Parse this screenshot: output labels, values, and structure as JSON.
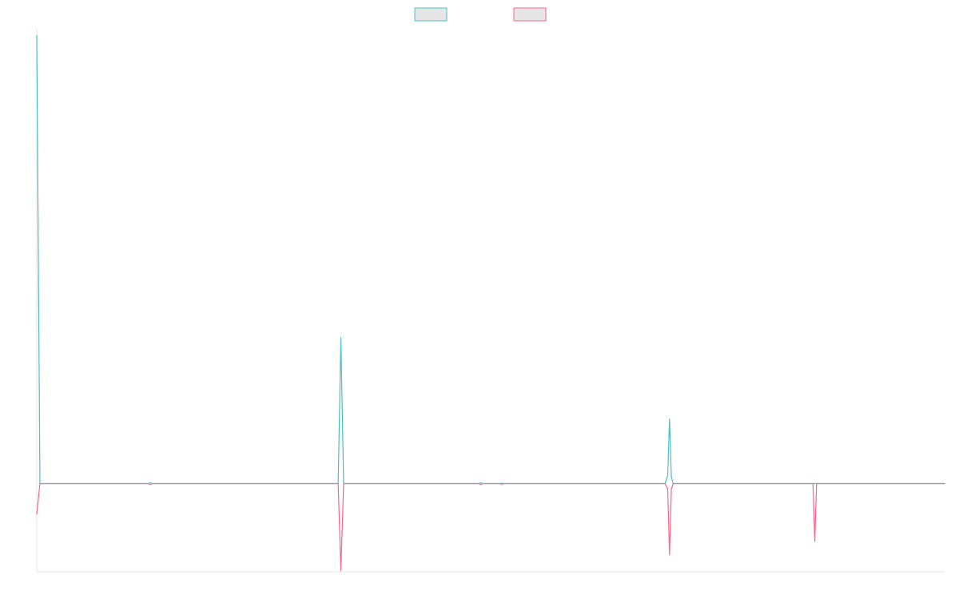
{
  "chart_data": {
    "type": "line",
    "title": "",
    "xlabel": "",
    "ylabel": "",
    "grid": false,
    "legend_placement": "top-center",
    "xlim": [
      0,
      1000
    ],
    "ylim": [
      -13,
      67
    ],
    "series": [
      {
        "color": "#4bc0c0",
        "points": [
          [
            0,
            66
          ],
          [
            3.5,
            0
          ],
          [
            123,
            0
          ],
          [
            125,
            0.15
          ],
          [
            127,
            0
          ],
          [
            332,
            0
          ],
          [
            335,
            21.5
          ],
          [
            338,
            0
          ],
          [
            487,
            0
          ],
          [
            489,
            0.15
          ],
          [
            491,
            0
          ],
          [
            510,
            0
          ],
          [
            512,
            0.05
          ],
          [
            514,
            0
          ],
          [
            692,
            0
          ],
          [
            695,
            1.2
          ],
          [
            697,
            9.5
          ],
          [
            699,
            1.0
          ],
          [
            701,
            0
          ],
          [
            1000,
            0
          ]
        ]
      },
      {
        "color": "#ff6384",
        "points": [
          [
            0,
            -4.5
          ],
          [
            3.5,
            0
          ],
          [
            123,
            0
          ],
          [
            125,
            -0.15
          ],
          [
            127,
            0
          ],
          [
            332,
            0
          ],
          [
            335,
            -12.8
          ],
          [
            338,
            0
          ],
          [
            487,
            0
          ],
          [
            489,
            -0.15
          ],
          [
            491,
            0
          ],
          [
            510,
            0
          ],
          [
            512,
            -0.1
          ],
          [
            514,
            0
          ],
          [
            692,
            0
          ],
          [
            695,
            -0.8
          ],
          [
            697,
            -10.5
          ],
          [
            699,
            -0.8
          ],
          [
            701,
            0
          ],
          [
            855,
            0
          ],
          [
            857,
            -8.5
          ],
          [
            859,
            0
          ],
          [
            1000,
            0
          ]
        ]
      }
    ]
  }
}
